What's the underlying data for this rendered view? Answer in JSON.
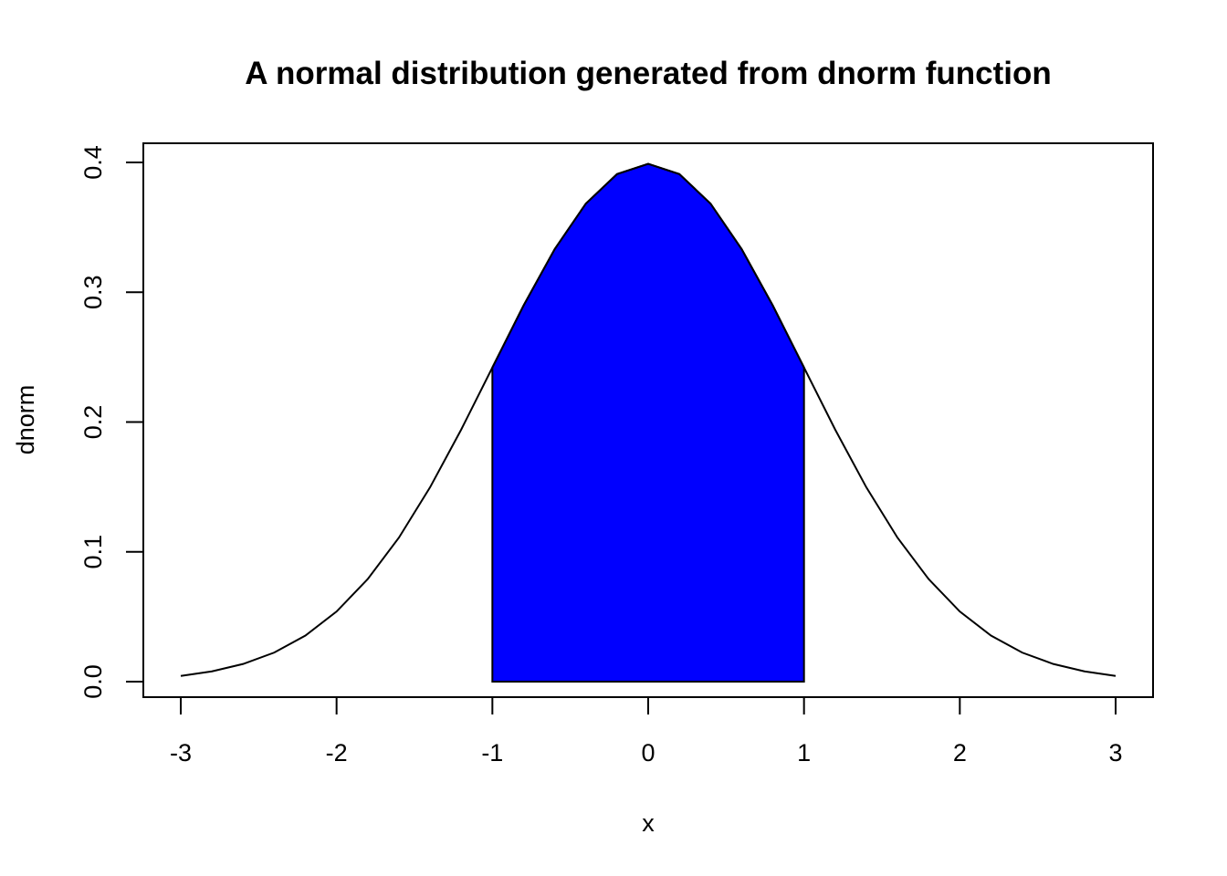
{
  "chart_data": {
    "type": "line",
    "title": "A normal distribution generated from dnorm function",
    "xlabel": "x",
    "ylabel": "dnorm",
    "xlim": [
      -3,
      3
    ],
    "ylim": [
      0,
      0.4
    ],
    "x_ticks": [
      -3,
      -2,
      -1,
      0,
      1,
      2,
      3
    ],
    "x_tick_labels": [
      "-3",
      "-2",
      "-1",
      "0",
      "1",
      "2",
      "3"
    ],
    "y_ticks": [
      0,
      0.1,
      0.2,
      0.3,
      0.4
    ],
    "y_tick_labels": [
      "0.0",
      "0.1",
      "0.2",
      "0.3",
      "0.4"
    ],
    "grid": false,
    "series": [
      {
        "type": "line",
        "color": "#000000",
        "x": [
          -3,
          -2.8,
          -2.6,
          -2.4,
          -2.2,
          -2,
          -1.8,
          -1.6,
          -1.4,
          -1.2,
          -1,
          -0.8,
          -0.6,
          -0.4,
          -0.2,
          0,
          0.2,
          0.4,
          0.6,
          0.8,
          1,
          1.2,
          1.4,
          1.6,
          1.8,
          2,
          2.2,
          2.4,
          2.6,
          2.8,
          3
        ],
        "y": [
          0.0044,
          0.0079,
          0.0136,
          0.0224,
          0.0355,
          0.054,
          0.079,
          0.1109,
          0.1497,
          0.1942,
          0.242,
          0.2897,
          0.3332,
          0.3683,
          0.391,
          0.3989,
          0.391,
          0.3683,
          0.3332,
          0.2897,
          0.242,
          0.1942,
          0.1497,
          0.1109,
          0.079,
          0.054,
          0.0355,
          0.0224,
          0.0136,
          0.0079,
          0.0044
        ]
      }
    ],
    "shaded_region": {
      "type": "area",
      "color": "#0000ff",
      "x_from": -1,
      "x_to": 1,
      "x": [
        -1,
        -0.8,
        -0.6,
        -0.4,
        -0.2,
        0,
        0.2,
        0.4,
        0.6,
        0.8,
        1
      ],
      "y": [
        0.242,
        0.2897,
        0.3332,
        0.3683,
        0.391,
        0.3989,
        0.391,
        0.3683,
        0.3332,
        0.2897,
        0.242
      ]
    }
  }
}
